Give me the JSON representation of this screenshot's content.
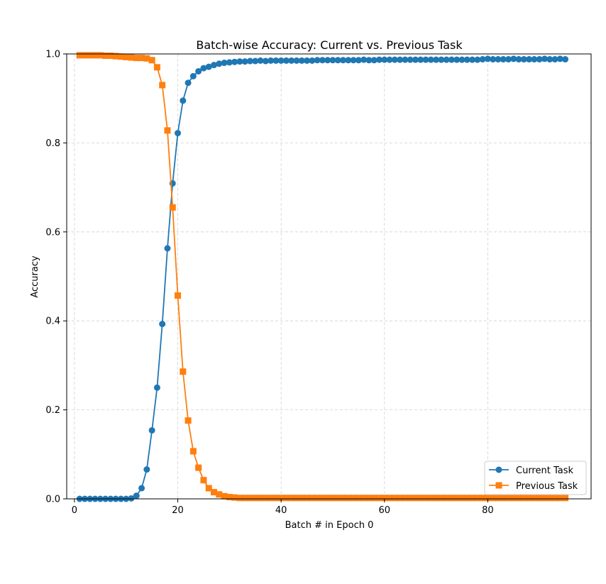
{
  "chart_data": {
    "type": "line",
    "title": "Batch-wise Accuracy: Current vs. Previous Task",
    "xlabel": "Batch # in Epoch 0",
    "ylabel": "Accuracy",
    "xlim": [
      -1.5,
      100
    ],
    "ylim": [
      0.0,
      1.0
    ],
    "xticks": [
      0,
      20,
      40,
      60,
      80
    ],
    "xtick_labels": [
      "0",
      "20",
      "40",
      "60",
      "80"
    ],
    "yticks": [
      0.0,
      0.2,
      0.4,
      0.6,
      0.8,
      1.0
    ],
    "ytick_labels": [
      "0.0",
      "0.2",
      "0.4",
      "0.6",
      "0.8",
      "1.0"
    ],
    "grid": true,
    "legend_position": "lower-right",
    "x": [
      1,
      2,
      3,
      4,
      5,
      6,
      7,
      8,
      9,
      10,
      11,
      12,
      13,
      14,
      15,
      16,
      17,
      18,
      19,
      20,
      21,
      22,
      23,
      24,
      25,
      26,
      27,
      28,
      29,
      30,
      31,
      32,
      33,
      34,
      35,
      36,
      37,
      38,
      39,
      40,
      41,
      42,
      43,
      44,
      45,
      46,
      47,
      48,
      49,
      50,
      51,
      52,
      53,
      54,
      55,
      56,
      57,
      58,
      59,
      60,
      61,
      62,
      63,
      64,
      65,
      66,
      67,
      68,
      69,
      70,
      71,
      72,
      73,
      74,
      75,
      76,
      77,
      78,
      79,
      80,
      81,
      82,
      83,
      84,
      85,
      86,
      87,
      88,
      89,
      90,
      91,
      92,
      93,
      94,
      95
    ],
    "series": [
      {
        "name": "Current Task",
        "color": "#1f77b4",
        "marker": "circle",
        "values": [
          0.0,
          0.0,
          0.0,
          0.0,
          0.0,
          0.0,
          0.0,
          0.0,
          0.0,
          0.0,
          0.001,
          0.007,
          0.024,
          0.066,
          0.154,
          0.25,
          0.393,
          0.563,
          0.709,
          0.822,
          0.895,
          0.935,
          0.95,
          0.961,
          0.968,
          0.971,
          0.975,
          0.978,
          0.98,
          0.981,
          0.982,
          0.983,
          0.983,
          0.984,
          0.984,
          0.985,
          0.984,
          0.985,
          0.985,
          0.985,
          0.985,
          0.985,
          0.985,
          0.985,
          0.985,
          0.985,
          0.986,
          0.986,
          0.986,
          0.986,
          0.986,
          0.986,
          0.986,
          0.986,
          0.986,
          0.987,
          0.986,
          0.986,
          0.987,
          0.987,
          0.987,
          0.987,
          0.987,
          0.987,
          0.987,
          0.987,
          0.987,
          0.987,
          0.987,
          0.987,
          0.987,
          0.987,
          0.987,
          0.987,
          0.987,
          0.987,
          0.987,
          0.987,
          0.988,
          0.989,
          0.988,
          0.988,
          0.988,
          0.988,
          0.989,
          0.988,
          0.988,
          0.988,
          0.988,
          0.988,
          0.989,
          0.988,
          0.988,
          0.989,
          0.988
        ]
      },
      {
        "name": "Previous Task",
        "color": "#ff7f0e",
        "marker": "square",
        "values": [
          0.997,
          0.997,
          0.997,
          0.997,
          0.997,
          0.996,
          0.996,
          0.995,
          0.994,
          0.993,
          0.992,
          0.991,
          0.991,
          0.99,
          0.986,
          0.97,
          0.93,
          0.828,
          0.655,
          0.457,
          0.286,
          0.176,
          0.107,
          0.07,
          0.042,
          0.024,
          0.015,
          0.01,
          0.006,
          0.004,
          0.003,
          0.002,
          0.002,
          0.002,
          0.002,
          0.002,
          0.002,
          0.002,
          0.002,
          0.002,
          0.002,
          0.002,
          0.002,
          0.002,
          0.002,
          0.002,
          0.002,
          0.002,
          0.002,
          0.002,
          0.002,
          0.002,
          0.002,
          0.002,
          0.002,
          0.002,
          0.002,
          0.002,
          0.002,
          0.002,
          0.002,
          0.002,
          0.002,
          0.002,
          0.002,
          0.002,
          0.002,
          0.002,
          0.002,
          0.002,
          0.002,
          0.002,
          0.002,
          0.002,
          0.002,
          0.002,
          0.002,
          0.002,
          0.002,
          0.002,
          0.002,
          0.002,
          0.002,
          0.002,
          0.002,
          0.002,
          0.002,
          0.002,
          0.002,
          0.002,
          0.002,
          0.002,
          0.002,
          0.002,
          0.002
        ]
      }
    ]
  }
}
